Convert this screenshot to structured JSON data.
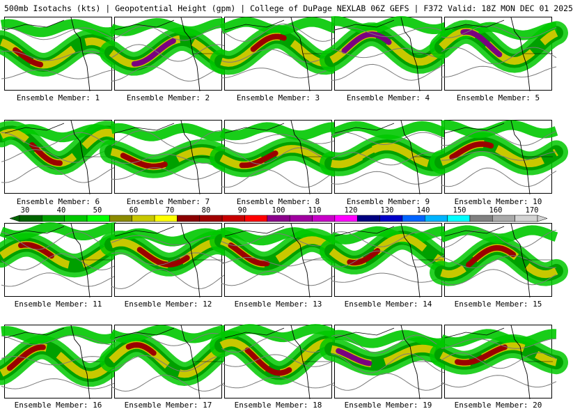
{
  "header": {
    "title": "500mb Isotachs (kts) | Geopotential Height (gpm) | College of DuPage NEXLAB   06Z GEFS | F372 Valid: 18Z MON DEC 01 2025"
  },
  "colorbar": {
    "ticks": [
      "30",
      "40",
      "50",
      "60",
      "70",
      "80",
      "90",
      "100",
      "110",
      "120",
      "130",
      "140",
      "150",
      "160",
      "170"
    ],
    "colors": [
      "#006400",
      "#00a000",
      "#00c800",
      "#00ff00",
      "#8b8b00",
      "#c8c800",
      "#ffff00",
      "#8b0000",
      "#a00000",
      "#c80000",
      "#ff0000",
      "#8b008b",
      "#a000a0",
      "#c800c8",
      "#ff00ff",
      "#000080",
      "#0000c8",
      "#0064ff",
      "#00b4ff",
      "#00ffff",
      "#808080",
      "#a9a9a9",
      "#d3d3d3"
    ]
  },
  "members": [
    {
      "label": "Ensemble Member: 1",
      "max_speed_class": "red"
    },
    {
      "label": "Ensemble Member: 2",
      "max_speed_class": "purple"
    },
    {
      "label": "Ensemble Member: 3",
      "max_speed_class": "red"
    },
    {
      "label": "Ensemble Member: 4",
      "max_speed_class": "purple"
    },
    {
      "label": "Ensemble Member: 5",
      "max_speed_class": "purple"
    },
    {
      "label": "Ensemble Member: 6",
      "max_speed_class": "red"
    },
    {
      "label": "Ensemble Member: 7",
      "max_speed_class": "red"
    },
    {
      "label": "Ensemble Member: 8",
      "max_speed_class": "red"
    },
    {
      "label": "Ensemble Member: 9",
      "max_speed_class": "yellow"
    },
    {
      "label": "Ensemble Member: 10",
      "max_speed_class": "red"
    },
    {
      "label": "Ensemble Member: 11",
      "max_speed_class": "red"
    },
    {
      "label": "Ensemble Member: 12",
      "max_speed_class": "red"
    },
    {
      "label": "Ensemble Member: 13",
      "max_speed_class": "red"
    },
    {
      "label": "Ensemble Member: 14",
      "max_speed_class": "red"
    },
    {
      "label": "Ensemble Member: 15",
      "max_speed_class": "red"
    },
    {
      "label": "Ensemble Member: 16",
      "max_speed_class": "red"
    },
    {
      "label": "Ensemble Member: 17",
      "max_speed_class": "red"
    },
    {
      "label": "Ensemble Member: 18",
      "max_speed_class": "red"
    },
    {
      "label": "Ensemble Member: 19",
      "max_speed_class": "purple"
    },
    {
      "label": "Ensemble Member: 20",
      "max_speed_class": "red"
    }
  ]
}
